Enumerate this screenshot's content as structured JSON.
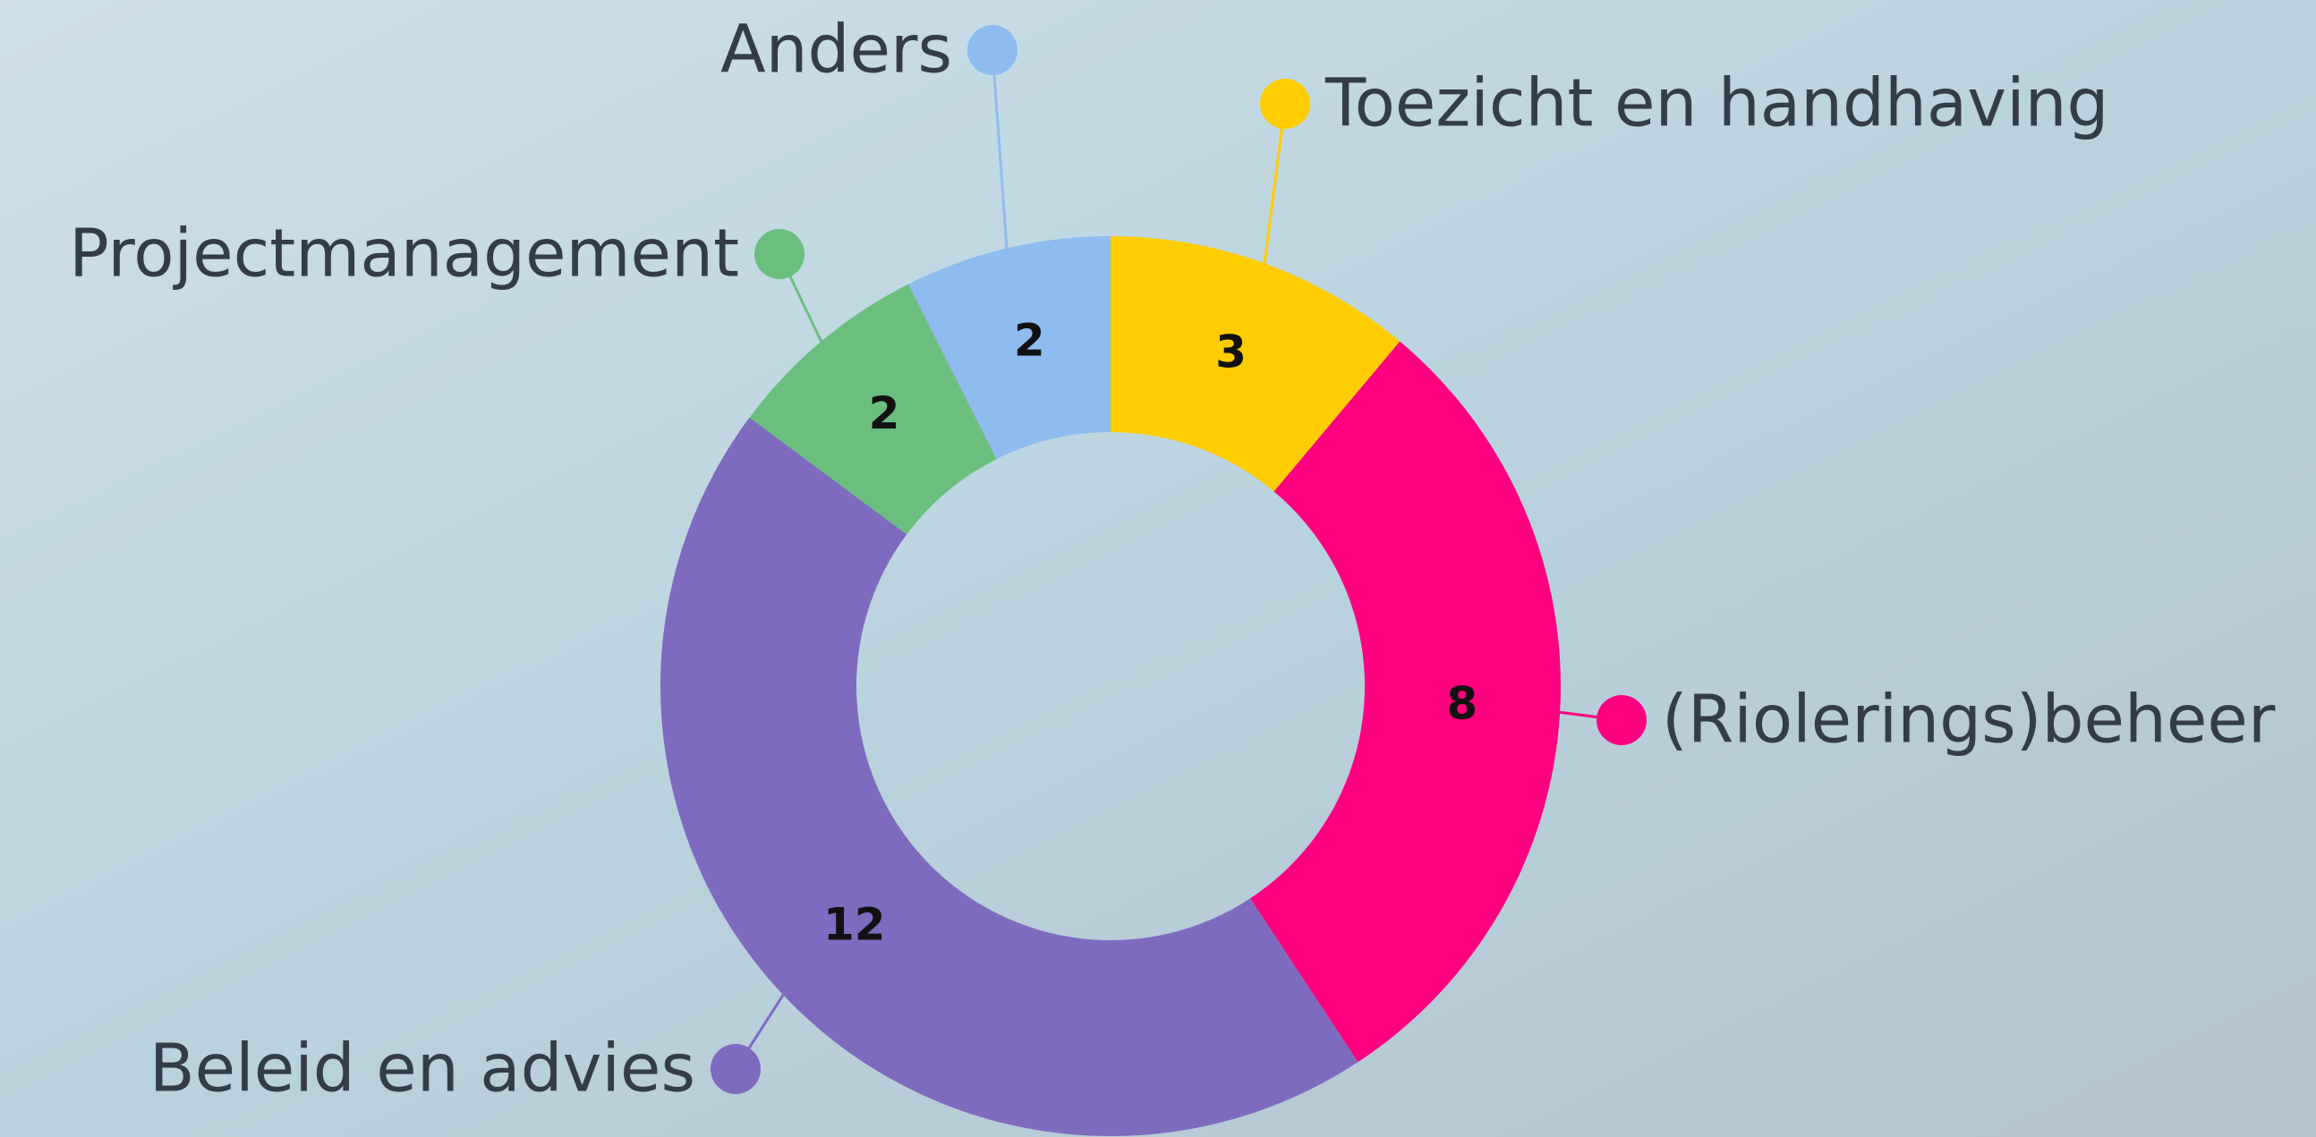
{
  "chart_data": {
    "type": "donut",
    "categories": [
      "Toezicht en handhaving",
      "(Riolerings)beheer",
      "Beleid en advies",
      "Projectmanagement",
      "Anders"
    ],
    "values": [
      3,
      8,
      12,
      2,
      2
    ],
    "colors": [
      "#ffcc00",
      "#ff007f",
      "#7e6bbf",
      "#6abf7f",
      "#8fbcf0"
    ]
  }
}
